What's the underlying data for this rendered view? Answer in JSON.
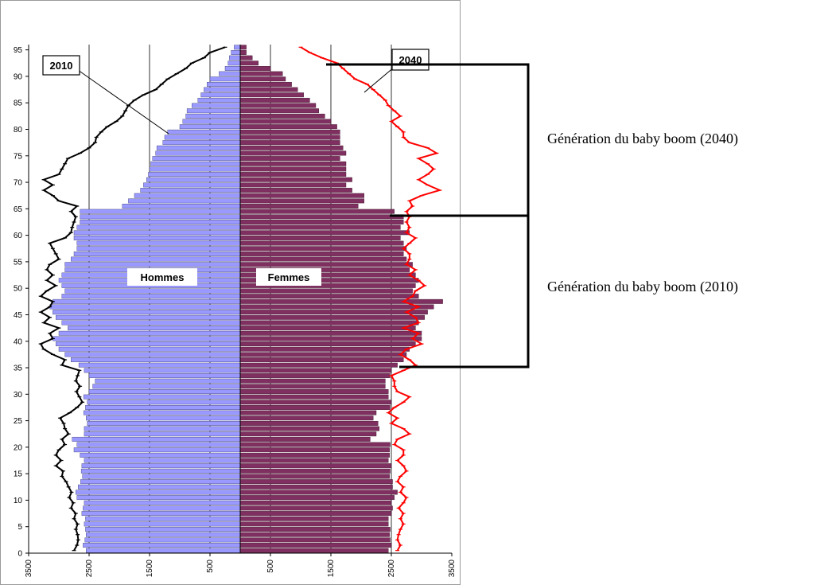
{
  "chart_data": {
    "type": "bar",
    "orientation": "horizontal",
    "description_type": "population-pyramid",
    "x_tick_labels": [
      "3500",
      "2500",
      "1500",
      "500",
      "500",
      "1500",
      "2500",
      "3500"
    ],
    "y_ticks": [
      0,
      5,
      10,
      15,
      20,
      25,
      30,
      35,
      40,
      45,
      50,
      55,
      60,
      65,
      70,
      75,
      80,
      85,
      90,
      95
    ],
    "xlim": [
      -3500,
      3500
    ],
    "ylim": [
      0,
      96
    ],
    "grid": {
      "vertical": true,
      "horizontal": false
    },
    "age_bins": [
      0,
      1,
      2,
      3,
      4,
      5,
      6,
      7,
      8,
      9,
      10,
      11,
      12,
      13,
      14,
      15,
      16,
      17,
      18,
      19,
      20,
      21,
      22,
      23,
      24,
      25,
      26,
      27,
      28,
      29,
      30,
      31,
      32,
      33,
      34,
      35,
      36,
      37,
      38,
      39,
      40,
      41,
      42,
      43,
      44,
      45,
      46,
      47,
      48,
      49,
      50,
      51,
      52,
      53,
      54,
      55,
      56,
      57,
      58,
      59,
      60,
      61,
      62,
      63,
      64,
      65,
      66,
      67,
      68,
      69,
      70,
      71,
      72,
      73,
      74,
      75,
      76,
      77,
      78,
      79,
      80,
      81,
      82,
      83,
      84,
      85,
      86,
      87,
      88,
      89,
      90,
      91,
      92,
      93,
      94,
      95
    ],
    "series": [
      {
        "name": "Hommes",
        "color": "#9999ff",
        "values": [
          2550,
          2600,
          2570,
          2550,
          2560,
          2580,
          2560,
          2620,
          2600,
          2580,
          2700,
          2720,
          2680,
          2640,
          2610,
          2630,
          2620,
          2580,
          2650,
          2750,
          2700,
          2780,
          2580,
          2580,
          2530,
          2550,
          2590,
          2560,
          2530,
          2590,
          2500,
          2440,
          2400,
          2500,
          2580,
          2670,
          2800,
          2900,
          3000,
          3050,
          3100,
          3000,
          2850,
          2950,
          3050,
          3100,
          3150,
          3100,
          2950,
          2900,
          2950,
          3000,
          2950,
          2900,
          2900,
          2800,
          2750,
          2700,
          2700,
          2750,
          2750,
          2700,
          2650,
          2650,
          2650,
          1950,
          1850,
          1750,
          1650,
          1600,
          1550,
          1520,
          1500,
          1480,
          1450,
          1400,
          1380,
          1280,
          1250,
          1200,
          1000,
          950,
          900,
          880,
          800,
          700,
          650,
          600,
          550,
          500,
          350,
          250,
          200,
          180,
          150,
          100
        ]
      },
      {
        "name": "Femmes",
        "color": "#803060",
        "values": [
          2450,
          2500,
          2480,
          2470,
          2480,
          2450,
          2450,
          2500,
          2520,
          2500,
          2550,
          2600,
          2520,
          2520,
          2470,
          2480,
          2500,
          2450,
          2470,
          2470,
          2480,
          2150,
          2250,
          2300,
          2280,
          2200,
          2250,
          2480,
          2500,
          2450,
          2450,
          2400,
          2400,
          2480,
          2500,
          2600,
          2700,
          2750,
          2800,
          2900,
          3000,
          3000,
          2900,
          2950,
          3050,
          3100,
          3200,
          3350,
          2950,
          2850,
          2900,
          2950,
          2900,
          2800,
          2850,
          2750,
          2700,
          2750,
          2700,
          2650,
          2800,
          2650,
          2700,
          2700,
          2550,
          1950,
          2050,
          2050,
          1850,
          1750,
          1850,
          1750,
          1750,
          1750,
          1650,
          1750,
          1700,
          1650,
          1650,
          1650,
          1600,
          1500,
          1400,
          1300,
          1250,
          1150,
          1050,
          950,
          850,
          750,
          700,
          500,
          300,
          200,
          100,
          100
        ]
      },
      {
        "name": "2010",
        "color": "#000000",
        "side": "left",
        "values": [
          2750,
          2700,
          2680,
          2690,
          2720,
          2690,
          2750,
          2720,
          2800,
          2760,
          2830,
          2790,
          2840,
          2880,
          2950,
          2930,
          3050,
          2960,
          3050,
          3000,
          2900,
          2950,
          2840,
          2900,
          2920,
          2980,
          2820,
          2700,
          2610,
          2660,
          2710,
          2650,
          2720,
          2690,
          2660,
          2950,
          2900,
          3100,
          3250,
          3300,
          3100,
          3150,
          3000,
          3250,
          3150,
          3300,
          3150,
          3100,
          3300,
          3200,
          3050,
          3200,
          3100,
          3200,
          3150,
          3000,
          3050,
          3100,
          3150,
          2900,
          2800,
          2780,
          2750,
          2720,
          2800,
          2700,
          3000,
          3100,
          3250,
          3100,
          3250,
          3000,
          2950,
          2900,
          2850,
          2650,
          2500,
          2400,
          2380,
          2300,
          2200,
          2050,
          1950,
          1900,
          1850,
          1750,
          1600,
          1400,
          1300,
          1200,
          1050,
          900,
          800,
          600,
          500,
          250
        ]
      },
      {
        "name": "2040",
        "color": "#ff0000",
        "side": "right",
        "values": [
          2600,
          2650,
          2600,
          2620,
          2650,
          2700,
          2650,
          2700,
          2620,
          2700,
          2750,
          2650,
          2700,
          2600,
          2650,
          2750,
          2700,
          2600,
          2700,
          2700,
          2550,
          2600,
          2800,
          2700,
          2500,
          2600,
          2450,
          2550,
          2700,
          2800,
          2600,
          2550,
          2550,
          2500,
          2700,
          2900,
          2800,
          2650,
          2750,
          3000,
          2850,
          2950,
          2700,
          2950,
          2900,
          2750,
          2950,
          2700,
          2850,
          2900,
          3050,
          2950,
          2800,
          2900,
          2750,
          2800,
          2800,
          2700,
          2800,
          2900,
          2750,
          2800,
          2750,
          2800,
          2750,
          2850,
          2800,
          3000,
          3300,
          3100,
          2950,
          3100,
          3200,
          3100,
          2950,
          3250,
          3100,
          2800,
          2700,
          2700,
          2600,
          2500,
          2650,
          2550,
          2450,
          2400,
          2300,
          2200,
          2100,
          1900,
          1800,
          1700,
          1600,
          1350,
          1150,
          1000
        ]
      }
    ],
    "annotations": [
      {
        "text": "2010"
      },
      {
        "text": "2040"
      },
      {
        "text": "Hommes"
      },
      {
        "text": "Femmes"
      }
    ],
    "brackets": [
      {
        "label": "Génération du baby boom (2040)",
        "from_age": 64,
        "to_age": 91
      },
      {
        "label": "Génération du baby boom (2010)",
        "from_age": 35,
        "to_age": 64
      }
    ]
  }
}
